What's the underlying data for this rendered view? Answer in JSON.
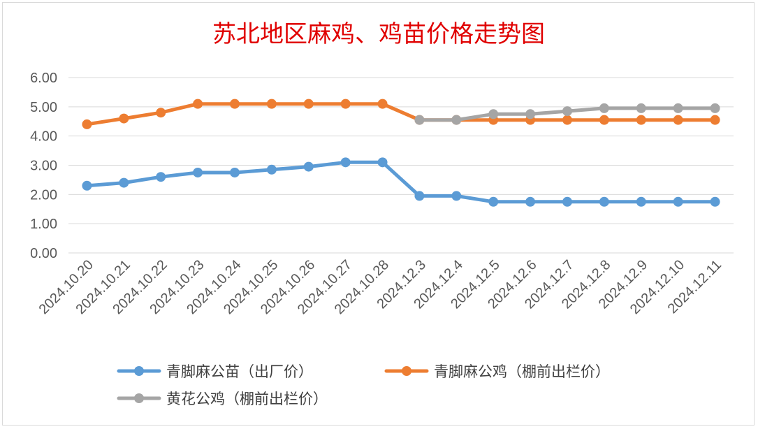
{
  "chart_data": {
    "type": "line",
    "title": "苏北地区麻鸡、鸡苗价格走势图",
    "ylim": [
      0,
      6
    ],
    "yticks": [
      "0.00",
      "1.00",
      "2.00",
      "3.00",
      "4.00",
      "5.00",
      "6.00"
    ],
    "grid": true,
    "legend_position": "bottom",
    "categories": [
      "2024.10.20",
      "2024.10.21",
      "2024.10.22",
      "2024.10.23",
      "2024.10.24",
      "2024.10.25",
      "2024.10.26",
      "2024.10.27",
      "2024.10.28",
      "2024.12.3",
      "2024.12.4",
      "2024.12.5",
      "2024.12.6",
      "2024.12.7",
      "2024.12.8",
      "2024.12.9",
      "2024.12.10",
      "2024.12.11"
    ],
    "series": [
      {
        "name": "青脚麻公苗（出厂价）",
        "color": "#5b9bd5",
        "values": [
          2.3,
          2.4,
          2.6,
          2.75,
          2.75,
          2.85,
          2.95,
          3.1,
          3.1,
          1.95,
          1.95,
          1.75,
          1.75,
          1.75,
          1.75,
          1.75,
          1.75,
          1.75
        ]
      },
      {
        "name": "青脚麻公鸡（棚前出栏价）",
        "color": "#ed7d31",
        "values": [
          4.4,
          4.6,
          4.8,
          5.1,
          5.1,
          5.1,
          5.1,
          5.1,
          5.1,
          4.55,
          4.55,
          4.55,
          4.55,
          4.55,
          4.55,
          4.55,
          4.55,
          4.55
        ]
      },
      {
        "name": "黄花公鸡（棚前出栏价）",
        "color": "#a5a5a5",
        "values": [
          null,
          null,
          null,
          null,
          null,
          null,
          null,
          null,
          null,
          4.55,
          4.55,
          4.75,
          4.75,
          4.85,
          4.95,
          4.95,
          4.95,
          4.95
        ]
      }
    ]
  }
}
